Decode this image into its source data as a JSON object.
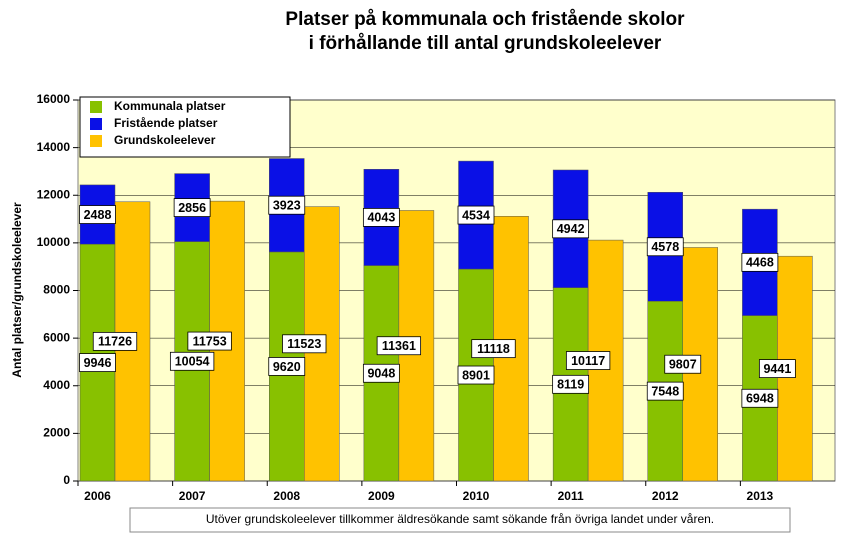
{
  "chart_data": {
    "type": "bar",
    "title": [
      "Platser på kommunala och fristående skolor",
      "i förhållande till antal grundskoleelever"
    ],
    "y_label": "Antal platser/grundskoleelever",
    "annotation": "Utöver grundskoleelever tillkommer äldresökande samt sökande från övriga landet under våren.",
    "categories": [
      "2006",
      "2007",
      "2008",
      "2009",
      "2010",
      "2011",
      "2012",
      "2013"
    ],
    "series": [
      {
        "name": "Kommunala platser",
        "color": "#88c100",
        "stack": "platser",
        "values": [
          9946,
          10054,
          9620,
          9048,
          8901,
          8119,
          7548,
          6948
        ]
      },
      {
        "name": "Fristående platser",
        "color": "#0a10e6",
        "stack": "platser",
        "values": [
          2488,
          2856,
          3923,
          4043,
          4534,
          4942,
          4578,
          4468
        ]
      },
      {
        "name": "Grundskoleelever",
        "color": "#ffc200",
        "stack": "elever",
        "values": [
          11726,
          11753,
          11523,
          11361,
          11118,
          10117,
          9807,
          9441
        ]
      }
    ],
    "ylim": [
      0,
      16000
    ],
    "yticks": [
      0,
      2000,
      4000,
      6000,
      8000,
      10000,
      12000,
      14000,
      16000
    ],
    "grid": true,
    "legend": "top-left",
    "plot_background": "#ffffcc"
  }
}
